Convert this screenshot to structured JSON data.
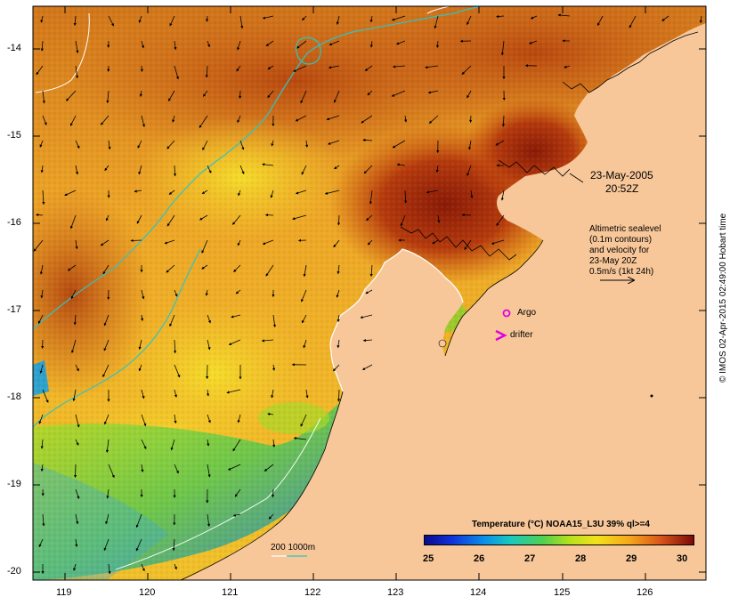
{
  "date_label": {
    "line1": "23-May-2005",
    "line2": "20:52Z"
  },
  "info_box": {
    "line1": "Altimetric sealevel",
    "line2": "(0.1m contours)",
    "line3": "and velocity for",
    "line4": "23-May 20Z",
    "line5": "0.5m/s (1kt 24h)"
  },
  "markers": {
    "argo_label": "Argo",
    "drifter_label": "drifter",
    "argo_color": "#e000e0",
    "drifter_color": "#e000e0"
  },
  "depth_scale": {
    "label": "200  1000m",
    "color_200": "#ffffff",
    "color_1000": "#2ec4c4"
  },
  "axes": {
    "lat_labels": [
      "-14",
      "-15",
      "-16",
      "-17",
      "-18",
      "-19",
      "-20"
    ],
    "lon_labels": [
      "119",
      "120",
      "121",
      "122",
      "123",
      "124",
      "125",
      "126"
    ]
  },
  "colorbar": {
    "title": "Temperature (°C) NOAA15_L3U 39% ql>=4",
    "labels": [
      "25",
      "26",
      "27",
      "28",
      "29",
      "30"
    ],
    "min": 25,
    "max": 30
  },
  "credit": "© IMOS 02-Apr-2015 02:49:00 Hobart time",
  "colors": {
    "land": "#f7c79a",
    "sst_warm": "#c9520f",
    "sst_hot": "#8a1a06",
    "sst_mid": "#f0a020",
    "sst_cool": "#f2d01e",
    "sst_green": "#9cd21e",
    "sst_cold": "#1aa0e0",
    "sst_coldest": "#1030c8"
  }
}
